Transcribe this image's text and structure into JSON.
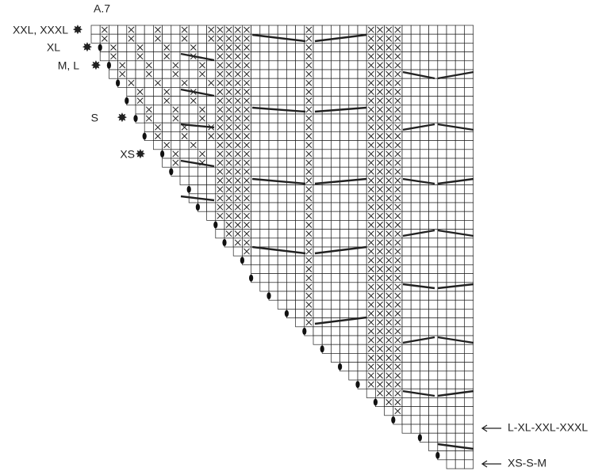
{
  "title": "A.7",
  "size_labels": [
    "XXL, XXXL",
    "XL",
    "M, L",
    "S",
    "XS"
  ],
  "row_markers": [
    "L-XL-XXL-XXXL",
    "XS-S-M"
  ]
}
